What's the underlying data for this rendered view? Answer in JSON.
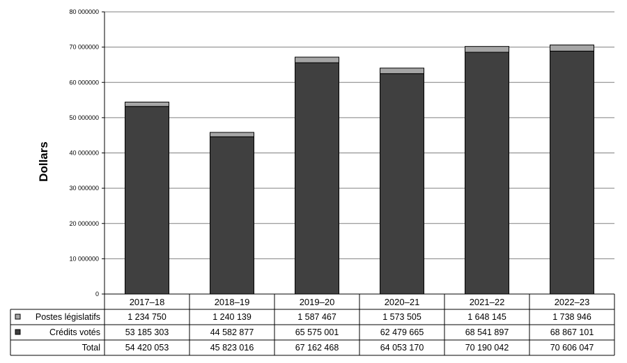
{
  "chart_data": {
    "type": "bar",
    "stacked": true,
    "ylabel": "Dollars",
    "ylim": [
      0,
      80000000
    ],
    "yticks": [
      "0",
      "10 000000",
      "20 000000",
      "30 000000",
      "40 000000",
      "50 000000",
      "60 000000",
      "70 000000",
      "80 000000"
    ],
    "ytick_values": [
      0,
      10000000,
      20000000,
      30000000,
      40000000,
      50000000,
      60000000,
      70000000,
      80000000
    ],
    "grid": true,
    "categories": [
      "2017–18",
      "2018–19",
      "2019–20",
      "2020–21",
      "2021–22",
      "2022–23"
    ],
    "series": [
      {
        "name": "Crédits votés",
        "color": "#404040",
        "values": [
          53185303,
          44582877,
          65575001,
          62479665,
          68541897,
          68867101
        ],
        "labels": [
          "53 185 303",
          "44 582 877",
          "65 575 001",
          "62 479 665",
          "68 541 897",
          "68 867 101"
        ]
      },
      {
        "name": "Postes législatifs",
        "color": "#a6a6a6",
        "values": [
          1234750,
          1240139,
          1587467,
          1573505,
          1648145,
          1738946
        ],
        "labels": [
          "1 234 750",
          "1 240 139",
          "1 587 467",
          "1 573 505",
          "1 648 145",
          "1 738 946"
        ]
      }
    ],
    "total": {
      "name": "Total",
      "values": [
        54420053,
        45823016,
        67162468,
        64053170,
        70190042,
        70606047
      ],
      "labels": [
        "54 420 053",
        "45 823 016",
        "67 162 468",
        "64 053 170",
        "70 190 042",
        "70 606 047"
      ]
    },
    "table_rows": [
      "Postes législatifs",
      "Crédits votés",
      "Total"
    ]
  }
}
